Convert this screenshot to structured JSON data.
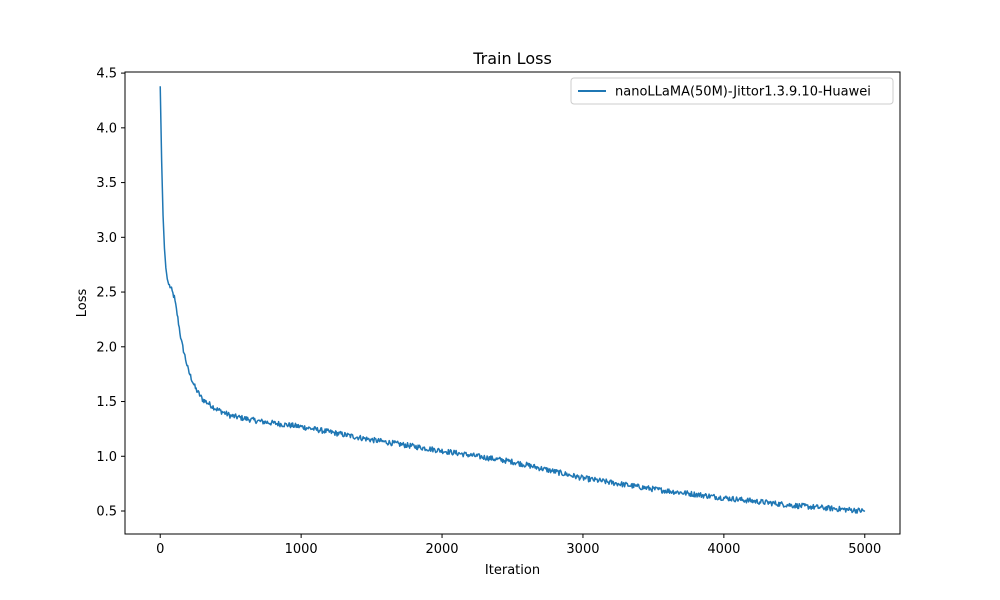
{
  "chart_data": {
    "type": "line",
    "title": "Train Loss",
    "xlabel": "Iteration",
    "ylabel": "Loss",
    "xlim": [
      -250,
      5250
    ],
    "ylim": [
      0.29,
      4.51
    ],
    "xticks": [
      0,
      1000,
      2000,
      3000,
      4000,
      5000
    ],
    "yticks": [
      0.5,
      1.0,
      1.5,
      2.0,
      2.5,
      3.0,
      3.5,
      4.0,
      4.5
    ],
    "xtick_labels": [
      "0",
      "1000",
      "2000",
      "3000",
      "4000",
      "5000"
    ],
    "ytick_labels": [
      "0.5",
      "1.0",
      "1.5",
      "2.0",
      "2.5",
      "3.0",
      "3.5",
      "4.0",
      "4.5"
    ],
    "grid": false,
    "legend_position": "upper right",
    "series": [
      {
        "name": "nanoLLaMA(50M)-Jittor1.3.9.10-Huawei",
        "color": "#1f77b4",
        "x": [
          0,
          10,
          20,
          30,
          40,
          50,
          60,
          70,
          80,
          100,
          120,
          150,
          200,
          250,
          300,
          400,
          500,
          700,
          1000,
          1500,
          2000,
          2500,
          3000,
          3500,
          4000,
          4500,
          5000
        ],
        "y": [
          4.38,
          3.7,
          3.2,
          2.9,
          2.72,
          2.62,
          2.57,
          2.55,
          2.52,
          2.45,
          2.3,
          2.05,
          1.78,
          1.62,
          1.52,
          1.43,
          1.37,
          1.32,
          1.27,
          1.15,
          1.05,
          0.95,
          0.8,
          0.7,
          0.62,
          0.55,
          0.5
        ]
      }
    ]
  }
}
